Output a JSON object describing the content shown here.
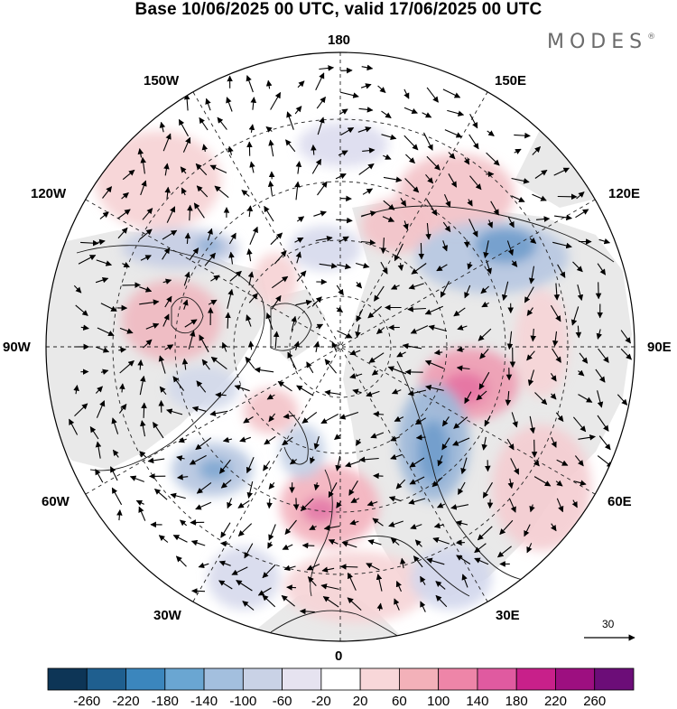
{
  "header": {
    "title": "Base 10/06/2025 00 UTC, valid 17/06/2025 00 UTC",
    "brand": "MODES",
    "brand_mark": "®"
  },
  "map": {
    "projection": "north polar stereographic",
    "longitude_labels": {
      "top": "180",
      "bottom": "0",
      "left": "90W",
      "right": "90E",
      "upper_left_1": "150W",
      "upper_left_2": "120W",
      "upper_right_1": "150E",
      "upper_right_2": "120E",
      "lower_left_1": "60W",
      "lower_left_2": "30W",
      "lower_right_1": "60E",
      "lower_right_2": "30E"
    },
    "reference_vector": {
      "value": "30"
    }
  },
  "colorbar": {
    "ticks": [
      "-260",
      "-220",
      "-180",
      "-140",
      "-100",
      "-60",
      "-20",
      "20",
      "60",
      "100",
      "140",
      "180",
      "220",
      "260"
    ],
    "colors": [
      "#0d3556",
      "#1f5f8f",
      "#3b86bd",
      "#6aa6d2",
      "#a3bfde",
      "#c9d2e6",
      "#e6e3f0",
      "#ffffff",
      "#f8d7d9",
      "#f3b1b9",
      "#ee85a8",
      "#e05aa0",
      "#c8208a",
      "#9d0f80",
      "#6c0d78"
    ]
  },
  "legend_colors": {
    "land_gray": "#ececec",
    "coast": "#1a1a1a"
  }
}
